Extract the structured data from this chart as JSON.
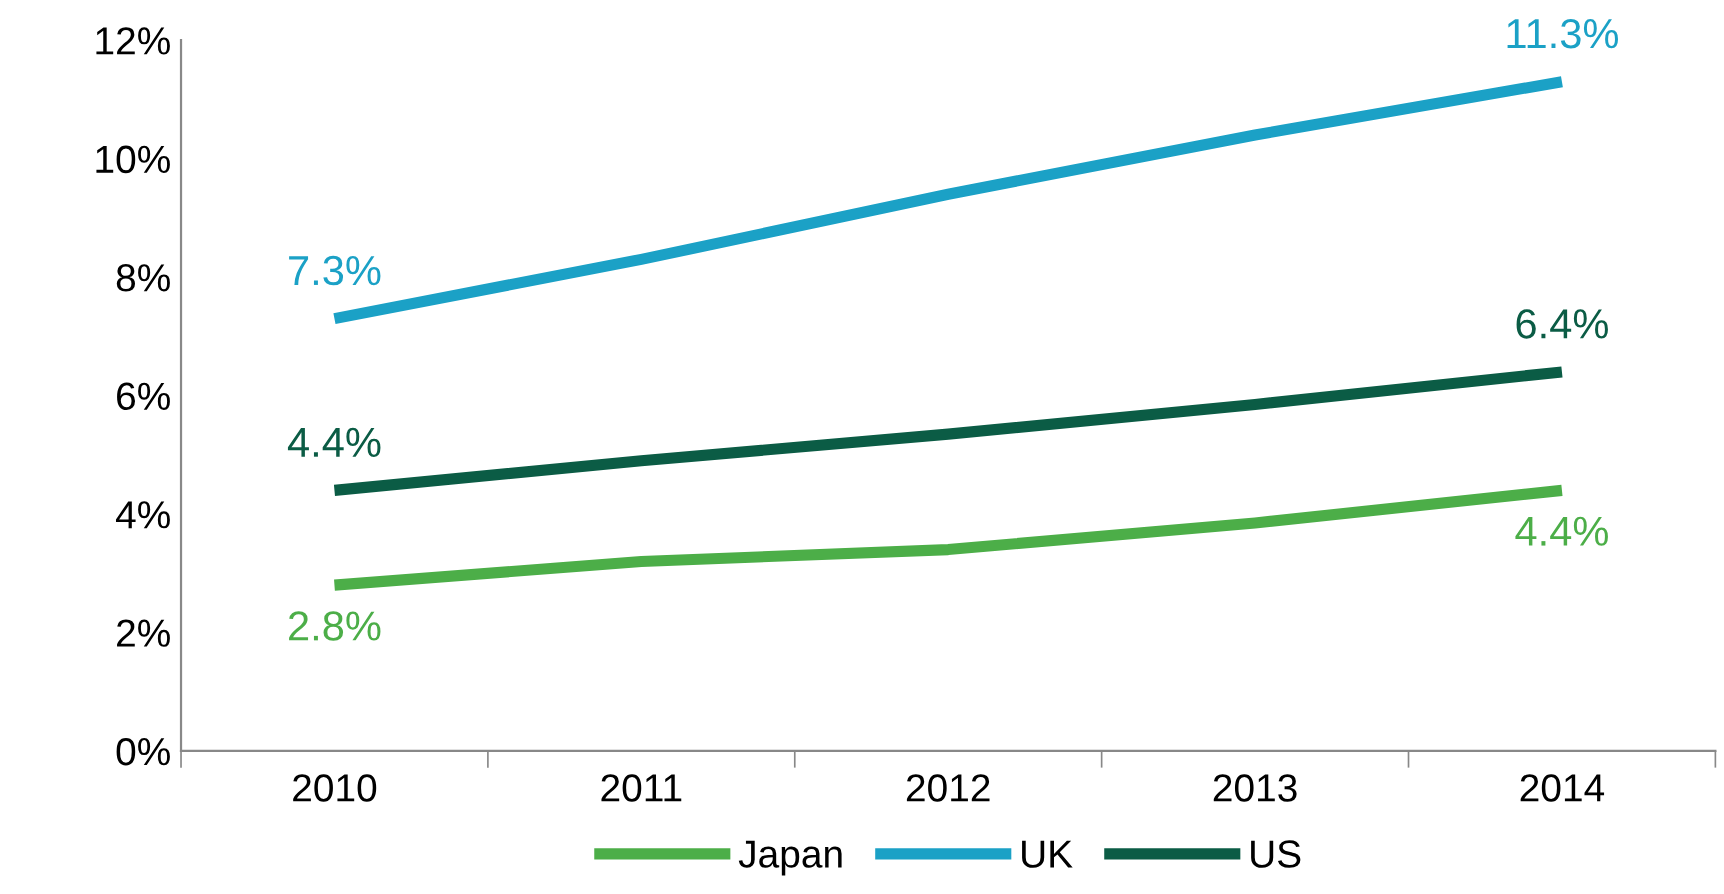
{
  "chart_data": {
    "type": "line",
    "categories": [
      "2010",
      "2011",
      "2012",
      "2013",
      "2014"
    ],
    "series": [
      {
        "name": "Japan",
        "color": "#4cae48",
        "values": [
          2.8,
          3.2,
          3.4,
          3.85,
          4.4
        ],
        "value_labels": [
          "2.8%",
          null,
          null,
          null,
          "4.4%"
        ]
      },
      {
        "name": "UK",
        "color": "#1ba1c6",
        "values": [
          7.3,
          8.3,
          9.4,
          10.4,
          11.3
        ],
        "value_labels": [
          "7.3%",
          null,
          null,
          null,
          "11.3%"
        ]
      },
      {
        "name": "US",
        "color": "#0b5c45",
        "values": [
          4.4,
          4.9,
          5.35,
          5.85,
          6.4
        ],
        "value_labels": [
          "4.4%",
          null,
          null,
          null,
          "6.4%"
        ]
      }
    ],
    "ylim": [
      0,
      12
    ],
    "yticks": [
      {
        "value": 0,
        "label": "0%"
      },
      {
        "value": 2,
        "label": "2%"
      },
      {
        "value": 4,
        "label": "4%"
      },
      {
        "value": 6,
        "label": "6%"
      },
      {
        "value": 8,
        "label": "8%"
      },
      {
        "value": 10,
        "label": "10%"
      },
      {
        "value": 12,
        "label": "12%"
      }
    ],
    "grid": false,
    "legend": "bottom",
    "marker": "none",
    "line_style": "solid"
  }
}
